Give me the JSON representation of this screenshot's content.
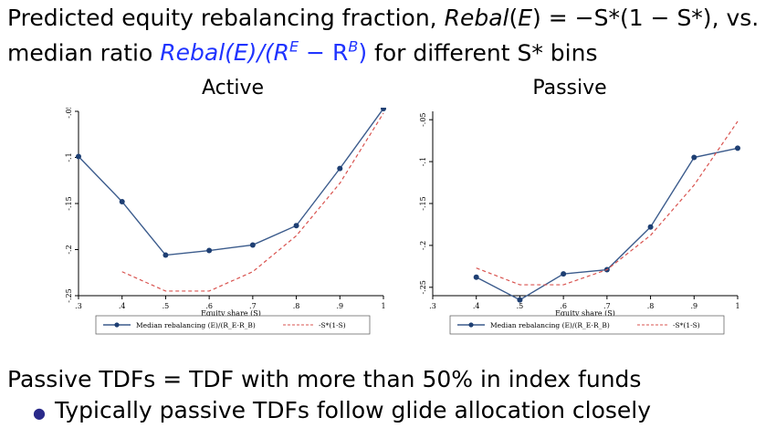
{
  "slide": {
    "title_line1_a": "Predicted equity rebalancing fraction, ",
    "title_line1_b": "Rebal",
    "title_line1_c": "(",
    "title_line1_d": "E",
    "title_line1_e": ") = −S*(1 − S*), vs.",
    "title_line2_a": "median ratio ",
    "title_line2_b": "Rebal(E)/(R",
    "title_line2_sup1": "E",
    "title_line2_c": " − R",
    "title_line2_sup2": "B",
    "title_line2_d": ")",
    "title_line2_e": " for different S* bins",
    "footer_line": "Passive TDFs = TDF with more than 50% in index funds",
    "footer_sub": "Typically passive TDFs follow glide allocation closely"
  },
  "chart_data": [
    {
      "type": "line",
      "title": "Active",
      "xlabel": "Equity share (S)",
      "x_ticks": [
        ".3",
        ".4",
        ".5",
        ".6",
        ".7",
        ".8",
        ".9",
        "1"
      ],
      "y_ticks": [
        "-.25",
        "-.2",
        "-.15",
        "-.1",
        "-.05"
      ],
      "xlim": [
        0.3,
        1.0
      ],
      "ylim": [
        -0.25,
        -0.05
      ],
      "legend_position": "bottom",
      "series": [
        {
          "name": "Median rebalancing (E)/(R_E-R_B)",
          "color": "#3b5b8c",
          "style": "solid-markers",
          "x": [
            0.3,
            0.4,
            0.5,
            0.6,
            0.7,
            0.8,
            0.9,
            1.0
          ],
          "y": [
            -0.099,
            -0.148,
            -0.206,
            -0.201,
            -0.195,
            -0.174,
            -0.112,
            -0.047
          ]
        },
        {
          "name": "-S*(1-S)",
          "color": "#d9534f",
          "style": "dashed",
          "x": [
            0.4,
            0.5,
            0.6,
            0.7,
            0.8,
            0.9,
            1.0
          ],
          "y": [
            -0.224,
            -0.245,
            -0.245,
            -0.224,
            -0.185,
            -0.128,
            -0.052
          ]
        }
      ]
    },
    {
      "type": "line",
      "title": "Passive",
      "xlabel": "Equity share (S)",
      "x_ticks": [
        ".3",
        ".4",
        ".5",
        ".6",
        ".7",
        ".8",
        ".9",
        "1"
      ],
      "y_ticks": [
        "-.25",
        "-.2",
        "-.15",
        "-.1",
        "-.05"
      ],
      "xlim": [
        0.3,
        1.0
      ],
      "ylim": [
        -0.26,
        -0.04
      ],
      "legend_position": "bottom",
      "series": [
        {
          "name": "Median rebalancing (E)/(R_E-R_B)",
          "color": "#3b5b8c",
          "style": "solid-markers",
          "x": [
            0.4,
            0.5,
            0.6,
            0.7,
            0.8,
            0.9,
            1.0
          ],
          "y": [
            -0.238,
            -0.265,
            -0.234,
            -0.229,
            -0.178,
            -0.095,
            -0.084
          ]
        },
        {
          "name": "-S*(1-S)",
          "color": "#d9534f",
          "style": "dashed",
          "x": [
            0.4,
            0.5,
            0.6,
            0.7,
            0.8,
            0.9,
            1.0
          ],
          "y": [
            -0.227,
            -0.247,
            -0.247,
            -0.229,
            -0.188,
            -0.128,
            -0.052
          ]
        }
      ]
    }
  ]
}
